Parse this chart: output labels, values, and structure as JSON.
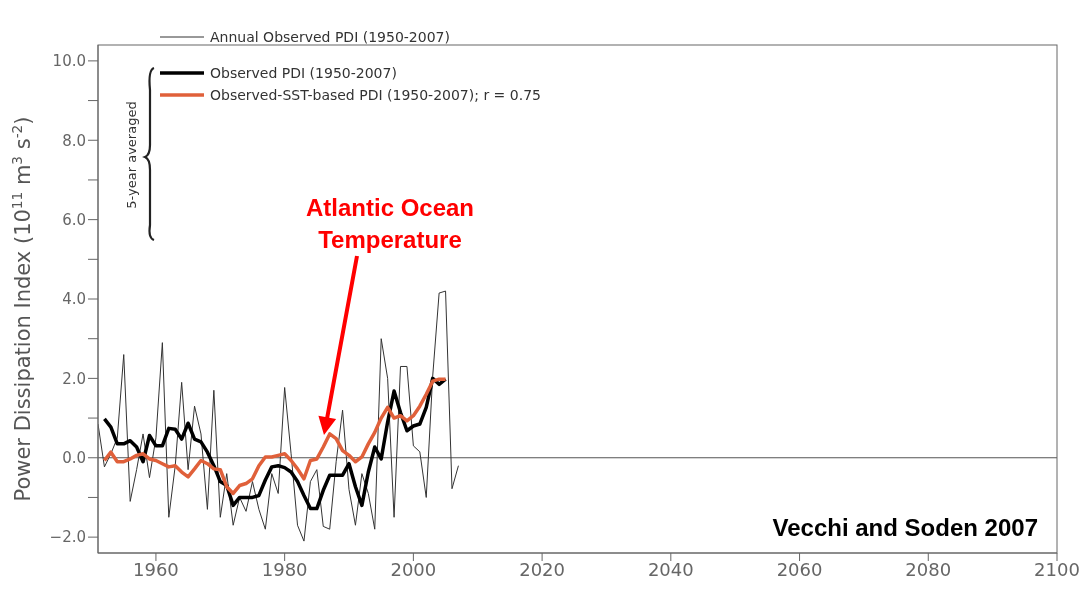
{
  "chart_data": {
    "type": "line",
    "ylabel": "Power Dissipation Index (10$^{11}$ m$^{3}$ s$^{-2}$)",
    "x": [
      1951,
      1952,
      1953,
      1954,
      1955,
      1956,
      1957,
      1958,
      1959,
      1960,
      1961,
      1962,
      1963,
      1964,
      1965,
      1966,
      1967,
      1968,
      1969,
      1970,
      1971,
      1972,
      1973,
      1974,
      1975,
      1976,
      1977,
      1978,
      1979,
      1980,
      1981,
      1982,
      1983,
      1984,
      1985,
      1986,
      1987,
      1988,
      1989,
      1990,
      1991,
      1992,
      1993,
      1994,
      1995,
      1996,
      1997,
      1998,
      1999,
      2000,
      2001,
      2002,
      2003,
      2004,
      2005,
      2006,
      2007
    ],
    "series": [
      {
        "name": "Annual Observed PDI (1950-2007)",
        "color": "#333333",
        "values": [
          0.85,
          -0.23,
          0.1,
          0.5,
          2.6,
          -1.1,
          -0.3,
          0.6,
          -0.5,
          0.5,
          2.9,
          -1.5,
          -0.2,
          1.9,
          -0.3,
          1.3,
          0.6,
          -1.3,
          1.7,
          -1.5,
          -0.4,
          -1.7,
          -1.0,
          -1.35,
          -0.6,
          -1.3,
          -1.8,
          -0.4,
          -0.9,
          1.77,
          0.1,
          -1.7,
          -2.1,
          -0.6,
          -0.3,
          -1.73,
          -1.8,
          -0.1,
          1.2,
          -0.8,
          -1.7,
          -0.4,
          -0.9,
          -1.8,
          3.0,
          2.0,
          -1.5,
          2.3,
          2.3,
          0.3,
          0.15,
          -1.0,
          2.05,
          4.15,
          4.2,
          -0.78,
          -0.2
        ]
      },
      {
        "name": "Observed PDI (1950-2007)",
        "color": "#000000",
        "x": [
          1952,
          1953,
          1954,
          1955,
          1956,
          1957,
          1958,
          1959,
          1960,
          1961,
          1962,
          1963,
          1964,
          1965,
          1966,
          1967,
          1968,
          1969,
          1970,
          1971,
          1972,
          1973,
          1974,
          1975,
          1976,
          1977,
          1978,
          1979,
          1980,
          1981,
          1982,
          1983,
          1984,
          1985,
          1986,
          1987,
          1988,
          1989,
          1990,
          1991,
          1992,
          1993,
          1994,
          1995,
          1996,
          1997,
          1998,
          1999,
          2000,
          2001,
          2002,
          2003,
          2004,
          2005
        ],
        "values": [
          0.98,
          0.77,
          0.35,
          0.35,
          0.43,
          0.27,
          -0.1,
          0.56,
          0.3,
          0.3,
          0.74,
          0.72,
          0.47,
          0.87,
          0.47,
          0.4,
          0.14,
          -0.2,
          -0.6,
          -0.7,
          -1.2,
          -1.0,
          -1.0,
          -1.0,
          -0.95,
          -0.56,
          -0.23,
          -0.2,
          -0.25,
          -0.36,
          -0.6,
          -0.95,
          -1.28,
          -1.28,
          -0.82,
          -0.44,
          -0.44,
          -0.44,
          -0.15,
          -0.73,
          -1.2,
          -0.36,
          0.27,
          -0.03,
          0.9,
          1.68,
          1.14,
          0.68,
          0.8,
          0.85,
          1.27,
          2.0,
          1.85,
          1.98
        ]
      },
      {
        "name": "Observed-SST-based PDI (1950-2007); r = 0.75",
        "color": "#e0603a",
        "x": [
          1952,
          1953,
          1954,
          1955,
          1956,
          1957,
          1958,
          1959,
          1960,
          1961,
          1962,
          1963,
          1964,
          1965,
          1966,
          1967,
          1968,
          1969,
          1970,
          1971,
          1972,
          1973,
          1974,
          1975,
          1976,
          1977,
          1978,
          1979,
          1980,
          1981,
          1982,
          1983,
          1984,
          1985,
          1986,
          1987,
          1988,
          1989,
          1990,
          1991,
          1992,
          1993,
          1994,
          1995,
          1996,
          1997,
          1998,
          1999,
          2000,
          2001,
          2002,
          2003,
          2004,
          2005
        ],
        "values": [
          -0.07,
          0.14,
          -0.1,
          -0.1,
          -0.03,
          0.06,
          0.1,
          -0.03,
          -0.07,
          -0.15,
          -0.23,
          -0.2,
          -0.36,
          -0.48,
          -0.28,
          -0.07,
          -0.15,
          -0.28,
          -0.3,
          -0.73,
          -0.9,
          -0.7,
          -0.65,
          -0.53,
          -0.2,
          0.02,
          0.02,
          0.06,
          0.1,
          -0.07,
          -0.28,
          -0.53,
          -0.07,
          -0.03,
          0.27,
          0.6,
          0.48,
          0.18,
          0.06,
          -0.1,
          0.02,
          0.35,
          0.64,
          1.0,
          1.27,
          1.0,
          1.06,
          0.93,
          1.06,
          1.3,
          1.6,
          1.93,
          1.98,
          1.98
        ]
      }
    ],
    "xlim": [
      1951,
      2100
    ],
    "xticks": [
      1960,
      1980,
      2000,
      2020,
      2040,
      2060,
      2080,
      2100
    ],
    "ylim": [
      -2.4,
      10.4
    ],
    "yticks": [
      {
        "value": -2,
        "label": "−2.0"
      },
      {
        "value": -1,
        "label": null
      },
      {
        "value": 0,
        "label": "0.0"
      },
      {
        "value": 1,
        "label": null
      },
      {
        "value": 2,
        "label": "2.0"
      },
      {
        "value": 3,
        "label": null
      },
      {
        "value": 4,
        "label": "4.0"
      },
      {
        "value": 5,
        "label": null
      },
      {
        "value": 6,
        "label": "6.0"
      },
      {
        "value": 7,
        "label": null
      },
      {
        "value": 8,
        "label": "8.0"
      },
      {
        "value": 9,
        "label": null
      },
      {
        "value": 10,
        "label": "10.0"
      }
    ],
    "ref_lines": [
      {
        "axis": "y",
        "value": 0,
        "color": "#555555"
      }
    ],
    "legend": "top left",
    "marker": "none",
    "line_style": "solid",
    "annotations": [
      "5-year averaged",
      "Atlantic Ocean Temperature",
      "Vecchi and Soden 2007"
    ]
  }
}
